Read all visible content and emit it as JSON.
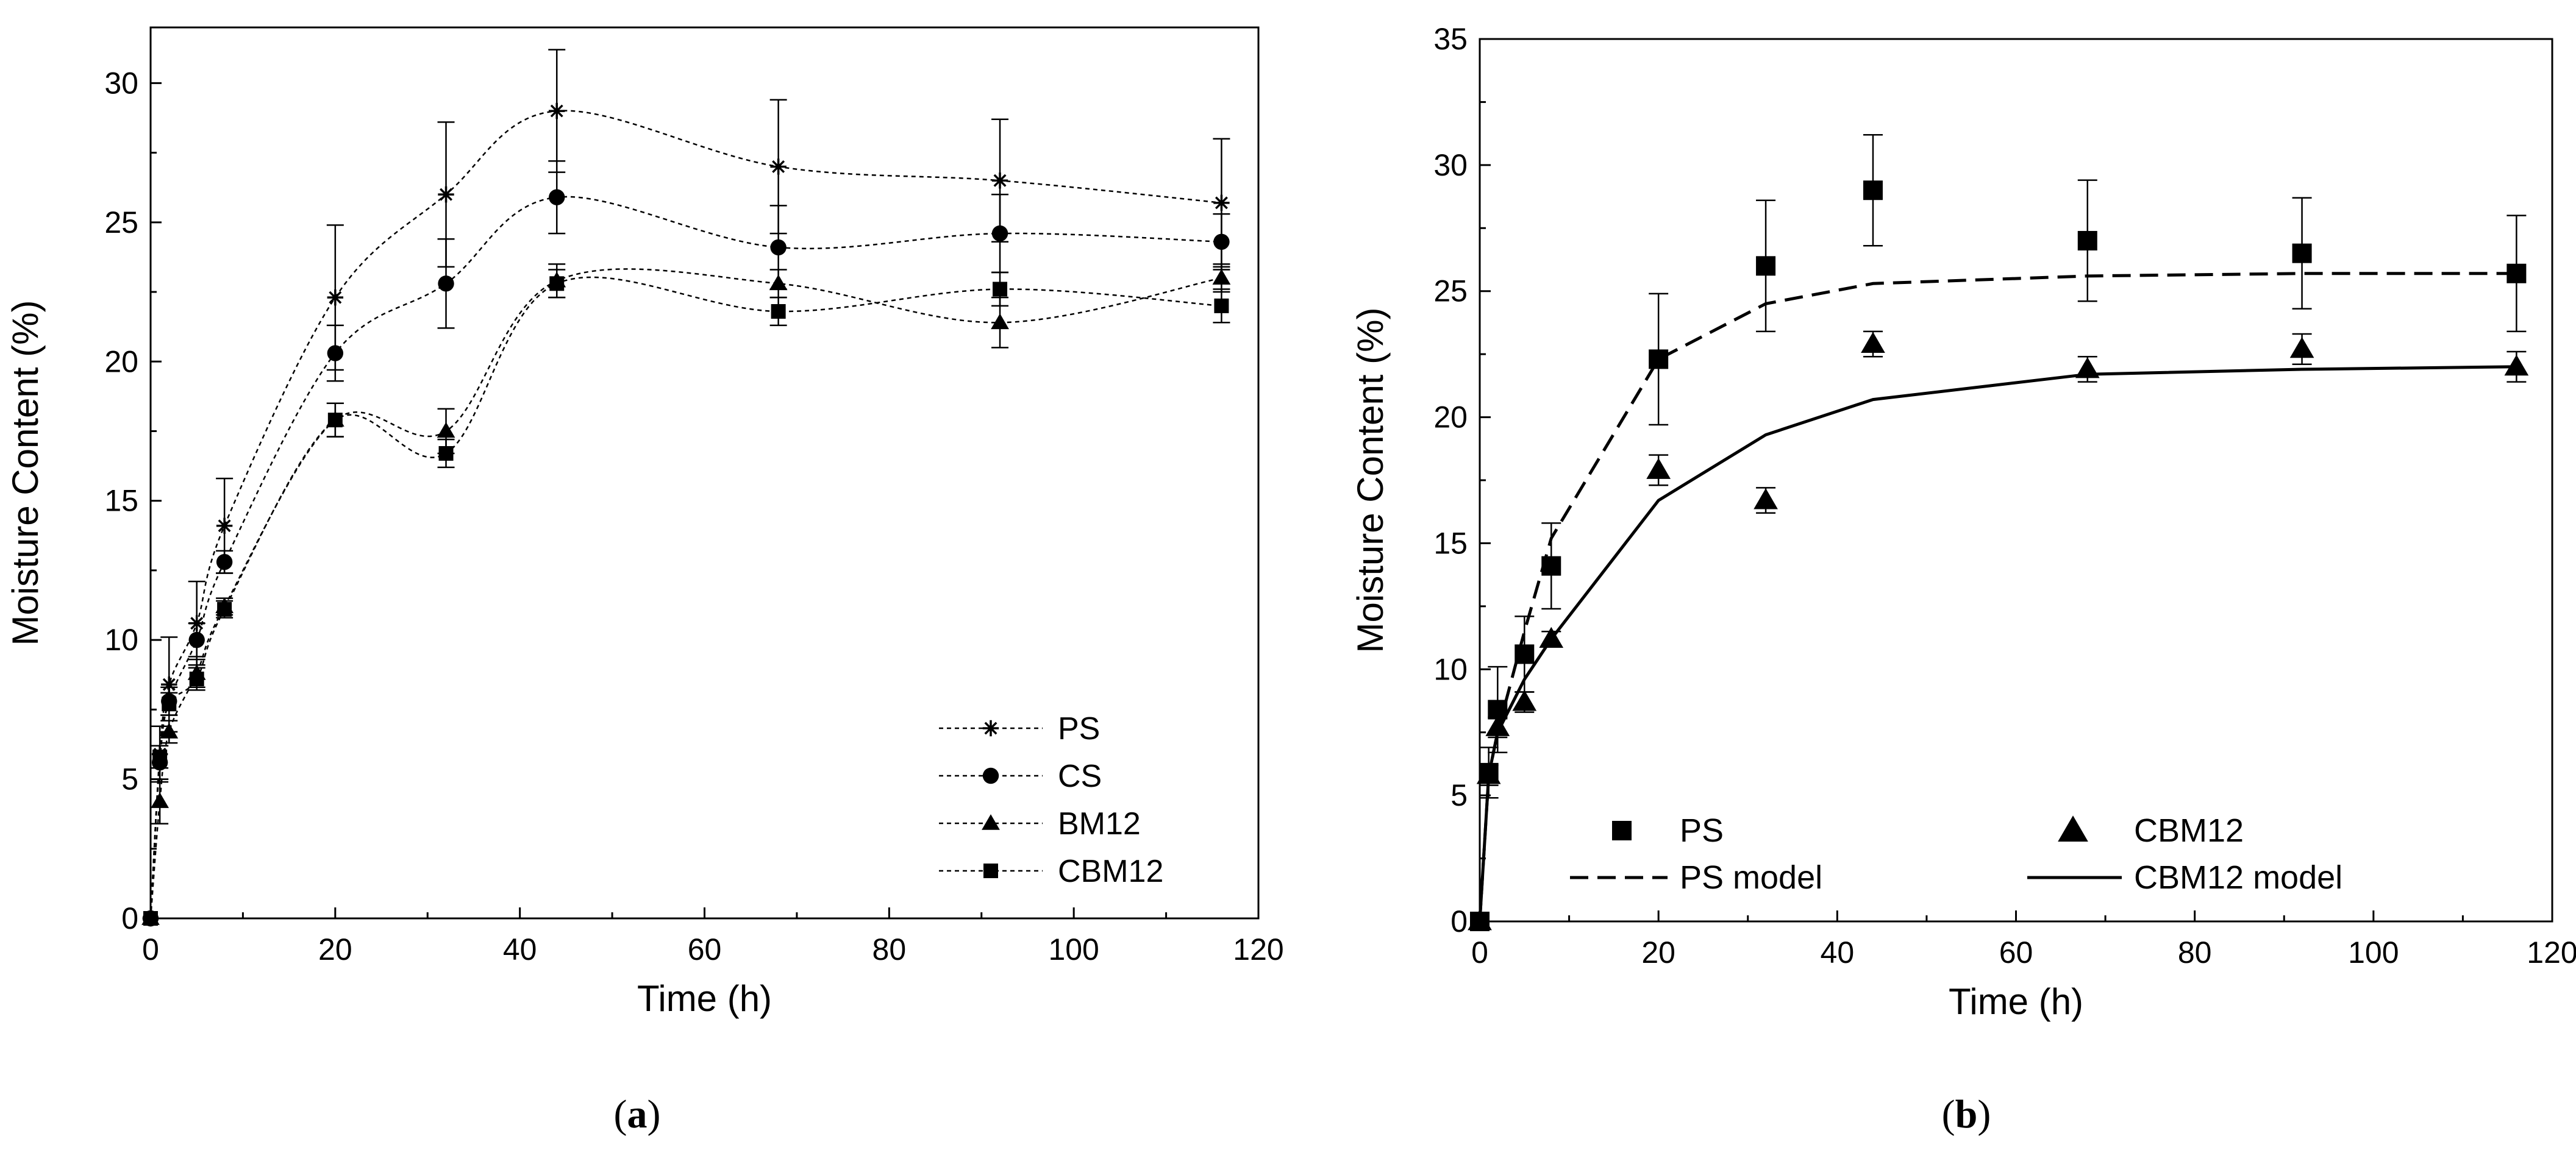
{
  "chart_data": [
    {
      "type": "line",
      "panel_label": "(a)",
      "panel_letter": "a",
      "xlabel": "Time (h)",
      "ylabel": "Moisture Content (%)",
      "xlim": [
        0,
        120
      ],
      "ylim": [
        0,
        32
      ],
      "xticks": [
        0,
        20,
        40,
        60,
        80,
        100,
        120
      ],
      "yticks": [
        0,
        5,
        10,
        15,
        20,
        25,
        30
      ],
      "legend_position": "bottom-right",
      "x": [
        0,
        1,
        2,
        5,
        8,
        20,
        32,
        44,
        68,
        92,
        116
      ],
      "series": [
        {
          "name": "PS",
          "marker": "asterisk",
          "line": "dotted-spline",
          "values": [
            0,
            5.9,
            8.4,
            10.6,
            14.1,
            22.3,
            26.0,
            29.0,
            27.0,
            26.5,
            25.7
          ],
          "errors": [
            0,
            1.0,
            1.7,
            1.5,
            1.7,
            2.6,
            2.6,
            2.2,
            2.4,
            2.2,
            2.3
          ]
        },
        {
          "name": "CS",
          "marker": "circle",
          "line": "dotted-spline",
          "values": [
            0,
            5.6,
            7.8,
            10.0,
            12.8,
            20.3,
            22.8,
            25.9,
            24.1,
            24.6,
            24.3
          ],
          "errors": [
            0,
            0.6,
            0.5,
            0.6,
            0.4,
            1.0,
            1.6,
            1.3,
            1.5,
            1.4,
            1.0
          ]
        },
        {
          "name": "BM12",
          "marker": "triangle",
          "line": "dotted-spline",
          "values": [
            0,
            4.2,
            6.7,
            8.8,
            11.2,
            17.9,
            17.5,
            22.9,
            22.8,
            21.4,
            23.0
          ],
          "errors": [
            0,
            0.8,
            0.4,
            0.5,
            0.3,
            0.6,
            0.8,
            0.6,
            0.5,
            0.9,
            0.5
          ]
        },
        {
          "name": "CBM12",
          "marker": "square",
          "line": "dotted-spline",
          "values": [
            0,
            5.8,
            7.7,
            8.6,
            11.1,
            17.9,
            16.7,
            22.8,
            21.8,
            22.6,
            22.0
          ],
          "errors": [
            0,
            0.4,
            0.4,
            0.4,
            0.3,
            0.6,
            0.5,
            0.5,
            0.5,
            0.6,
            0.6
          ]
        }
      ]
    },
    {
      "type": "scatter",
      "panel_label": "(b)",
      "panel_letter": "b",
      "xlabel": "Time (h)",
      "ylabel": "Moisture Content (%)",
      "xlim": [
        0,
        120
      ],
      "ylim": [
        0,
        35
      ],
      "xticks": [
        0,
        20,
        40,
        60,
        80,
        100,
        120
      ],
      "yticks": [
        0,
        5,
        10,
        15,
        20,
        25,
        30,
        35
      ],
      "legend_position": "bottom",
      "x": [
        0,
        1,
        2,
        5,
        8,
        20,
        32,
        44,
        68,
        92,
        116
      ],
      "series": [
        {
          "name": "PS",
          "marker": "square",
          "values": [
            0,
            5.9,
            8.4,
            10.6,
            14.1,
            22.3,
            26.0,
            29.0,
            27.0,
            26.5,
            25.7
          ],
          "errors": [
            0,
            1.0,
            1.7,
            1.5,
            1.7,
            2.6,
            2.6,
            2.2,
            2.4,
            2.2,
            2.3
          ]
        },
        {
          "name": "CBM12",
          "marker": "triangle",
          "values": [
            0,
            5.8,
            7.7,
            8.7,
            11.2,
            17.9,
            16.7,
            22.9,
            21.9,
            22.7,
            22.0
          ],
          "errors": [
            0,
            0.4,
            0.4,
            0.4,
            0.3,
            0.6,
            0.5,
            0.5,
            0.5,
            0.6,
            0.6
          ]
        }
      ],
      "models": [
        {
          "name": "PS model",
          "dash": "dashed",
          "x": [
            0,
            1,
            2,
            5,
            8,
            20,
            32,
            44,
            68,
            92,
            116
          ],
          "values": [
            0,
            5.8,
            7.5,
            11.5,
            15.2,
            22.3,
            24.5,
            25.3,
            25.6,
            25.7,
            25.7
          ]
        },
        {
          "name": "CBM12 model",
          "dash": "solid",
          "x": [
            0,
            1,
            2,
            5,
            8,
            20,
            32,
            44,
            68,
            92,
            116
          ],
          "values": [
            0,
            5.8,
            7.5,
            9.6,
            11.2,
            16.7,
            19.3,
            20.7,
            21.7,
            21.9,
            22.0
          ]
        }
      ]
    }
  ]
}
